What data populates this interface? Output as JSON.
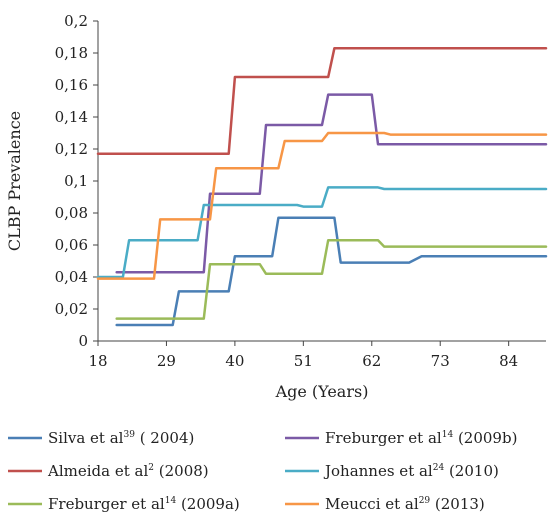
{
  "chart_data": {
    "type": "line",
    "xlabel": "Age (Years)",
    "ylabel": "CLBP Prevalence",
    "xlim": [
      18,
      90
    ],
    "ylim": [
      0,
      0.2
    ],
    "x_tick_labels": [
      "18",
      "29",
      "40",
      "51",
      "62",
      "73",
      "84"
    ],
    "y_tick_labels": [
      "0",
      "0,02",
      "0,04",
      "0,06",
      "0,08",
      "0,1",
      "0,12",
      "0,14",
      "0,16",
      "0,18",
      "0,2"
    ],
    "grid": false,
    "legend_position": "bottom",
    "series": [
      {
        "legend": {
          "pre": "Silva et al",
          "sup": "39",
          "post": " ( 2004)"
        },
        "color": "#4a7fb5",
        "points": [
          [
            21,
            0.01
          ],
          [
            30,
            0.01
          ],
          [
            31,
            0.031
          ],
          [
            39,
            0.031
          ],
          [
            40,
            0.053
          ],
          [
            46,
            0.053
          ],
          [
            47,
            0.077
          ],
          [
            56,
            0.077
          ],
          [
            57,
            0.049
          ],
          [
            68,
            0.049
          ],
          [
            70,
            0.053
          ],
          [
            90,
            0.053
          ]
        ]
      },
      {
        "legend": {
          "pre": "Almeida et al",
          "sup": "2",
          "post": " (2008)"
        },
        "color": "#c0504d",
        "points": [
          [
            18,
            0.117
          ],
          [
            39,
            0.117
          ],
          [
            40,
            0.165
          ],
          [
            55,
            0.165
          ],
          [
            56,
            0.183
          ],
          [
            90,
            0.183
          ]
        ]
      },
      {
        "legend": {
          "pre": "Freburger et al",
          "sup": "14",
          "post": " (2009a)"
        },
        "color": "#9bbb59",
        "points": [
          [
            21,
            0.014
          ],
          [
            35,
            0.014
          ],
          [
            36,
            0.048
          ],
          [
            44,
            0.048
          ],
          [
            45,
            0.042
          ],
          [
            54,
            0.042
          ],
          [
            55,
            0.063
          ],
          [
            63,
            0.063
          ],
          [
            64,
            0.059
          ],
          [
            90,
            0.059
          ]
        ]
      },
      {
        "legend": {
          "pre": "Freburger et al",
          "sup": "14",
          "post": " (2009b)"
        },
        "color": "#7b5aa6",
        "points": [
          [
            21,
            0.043
          ],
          [
            35,
            0.043
          ],
          [
            36,
            0.092
          ],
          [
            44,
            0.092
          ],
          [
            45,
            0.135
          ],
          [
            54,
            0.135
          ],
          [
            55,
            0.154
          ],
          [
            62,
            0.154
          ],
          [
            63,
            0.123
          ],
          [
            90,
            0.123
          ]
        ]
      },
      {
        "legend": {
          "pre": "Johannes et al",
          "sup": "24",
          "post": " (2010)"
        },
        "color": "#4aacc6",
        "points": [
          [
            18,
            0.04
          ],
          [
            22,
            0.04
          ],
          [
            23,
            0.063
          ],
          [
            34,
            0.063
          ],
          [
            35,
            0.085
          ],
          [
            50,
            0.085
          ],
          [
            51,
            0.084
          ],
          [
            54,
            0.084
          ],
          [
            55,
            0.096
          ],
          [
            63,
            0.096
          ],
          [
            64,
            0.095
          ],
          [
            90,
            0.095
          ]
        ]
      },
      {
        "legend": {
          "pre": "Meucci et al",
          "sup": "29",
          "post": " (2013)"
        },
        "color": "#f79646",
        "points": [
          [
            18,
            0.039
          ],
          [
            27,
            0.039
          ],
          [
            28,
            0.076
          ],
          [
            36,
            0.076
          ],
          [
            37,
            0.108
          ],
          [
            47,
            0.108
          ],
          [
            48,
            0.125
          ],
          [
            54,
            0.125
          ],
          [
            55,
            0.13
          ],
          [
            64,
            0.13
          ],
          [
            65,
            0.129
          ],
          [
            90,
            0.129
          ]
        ]
      }
    ]
  }
}
